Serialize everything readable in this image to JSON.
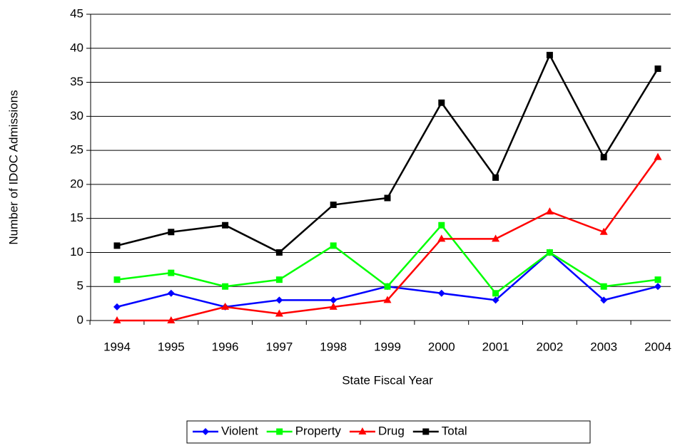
{
  "chart_data": {
    "type": "line",
    "x_label": "State Fiscal Year",
    "y_label": "Number of IDOC Admissions",
    "categories": [
      "1994",
      "1995",
      "1996",
      "1997",
      "1998",
      "1999",
      "2000",
      "2001",
      "2002",
      "2003",
      "2004"
    ],
    "series": [
      {
        "name": "Violent",
        "color": "#0000ff",
        "marker": "diamond",
        "values": [
          2,
          4,
          2,
          3,
          3,
          5,
          4,
          3,
          10,
          3,
          5
        ]
      },
      {
        "name": "Property",
        "color": "#00ff00",
        "marker": "square",
        "values": [
          6,
          7,
          5,
          6,
          11,
          5,
          14,
          4,
          10,
          5,
          6
        ]
      },
      {
        "name": "Drug",
        "color": "#ff0000",
        "marker": "triangle",
        "values": [
          0,
          0,
          2,
          1,
          2,
          3,
          12,
          12,
          16,
          13,
          24
        ]
      },
      {
        "name": "Total",
        "color": "#000000",
        "marker": "square",
        "values": [
          11,
          13,
          14,
          10,
          17,
          18,
          32,
          21,
          39,
          24,
          37
        ]
      }
    ],
    "ylim": [
      0,
      45
    ],
    "yticks": [
      0,
      5,
      10,
      15,
      20,
      25,
      30,
      35,
      40,
      45
    ],
    "grid": true,
    "legend": "bottom"
  }
}
